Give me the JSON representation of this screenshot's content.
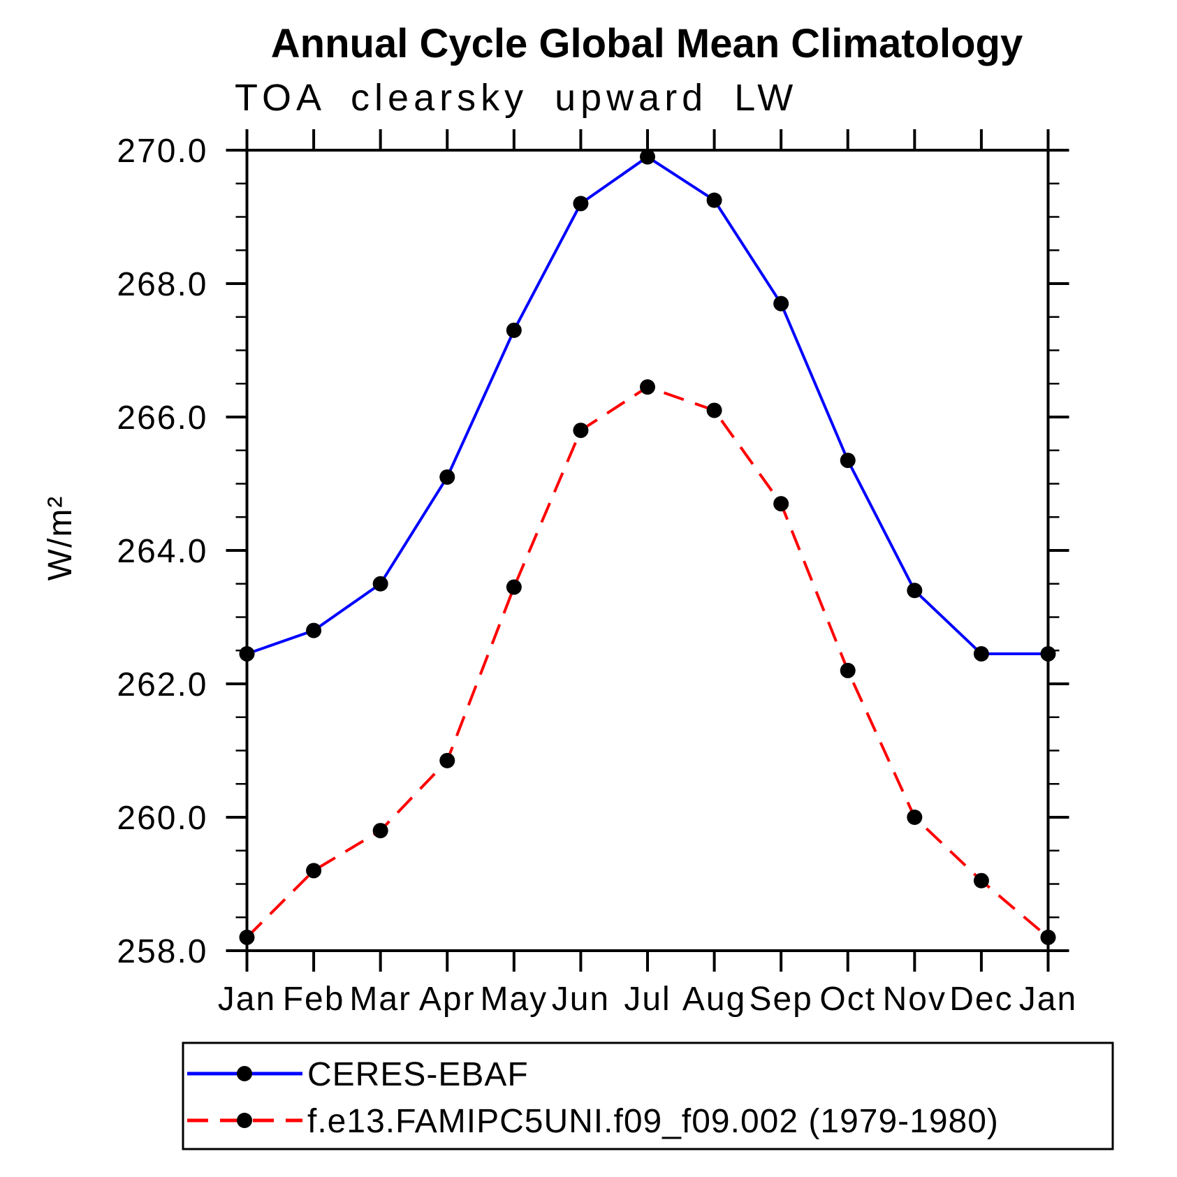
{
  "chart_data": {
    "type": "line",
    "title": "Annual Cycle Global Mean Climatology",
    "subtitle": "TOA clearsky upward LW",
    "ylabel": "W/m²",
    "categories": [
      "Jan",
      "Feb",
      "Mar",
      "Apr",
      "May",
      "Jun",
      "Jul",
      "Aug",
      "Sep",
      "Oct",
      "Nov",
      "Dec",
      "Jan"
    ],
    "ylim": [
      258.0,
      270.0
    ],
    "ytick_interval": 2.0,
    "yminor_interval": 0.5,
    "ytick_labels": [
      "270.0",
      "268.0",
      "266.0",
      "264.0",
      "262.0",
      "260.0",
      "258.0"
    ],
    "grid": false,
    "legend_position": "bottom",
    "series": [
      {
        "name": "CERES-EBAF",
        "color": "#0000ff",
        "line_style": "solid",
        "marker": "filled-circle",
        "marker_color": "#000000",
        "values": [
          262.45,
          262.8,
          263.5,
          265.1,
          267.3,
          269.2,
          269.9,
          269.25,
          267.7,
          265.35,
          263.4,
          262.45,
          262.45
        ]
      },
      {
        "name": "f.e13.FAMIPC5UNI.f09_f09.002 (1979-1980)",
        "color": "#ff0000",
        "line_style": "dashed",
        "marker": "filled-circle",
        "marker_color": "#000000",
        "values": [
          258.2,
          259.2,
          259.8,
          260.85,
          263.45,
          265.8,
          266.45,
          266.1,
          264.7,
          262.2,
          260.0,
          259.05,
          258.2
        ]
      }
    ]
  },
  "colors": {
    "background": "#ffffff",
    "axis": "#000000",
    "marker": "#000000",
    "series_observation": "#0000ff",
    "series_model": "#ff0000"
  }
}
